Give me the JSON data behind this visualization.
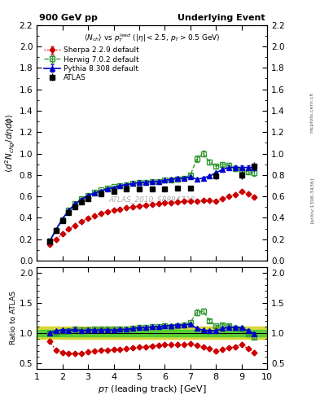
{
  "title_left": "900 GeV pp",
  "title_right": "Underlying Event",
  "ylabel_main": "$\\langle d^2 N_{chg}/d\\eta d\\phi \\rangle$",
  "ylabel_ratio": "Ratio to ATLAS",
  "xlabel": "$p_T$ (leading track) [GeV]",
  "subtitle": "$\\langle N_{ch}\\rangle$ vs $p_T^{lead}$ ($|\\eta| < 2.5$, $p_T > 0.5$ GeV)",
  "watermark": "ATLAS_2010_S8894728",
  "side_label_top": "mcplots.cern.ch",
  "side_label_bottom": "[arXiv:1306.3436]",
  "ylim_main": [
    0.0,
    2.2
  ],
  "ylim_ratio": [
    0.4,
    2.1
  ],
  "xlim": [
    1.0,
    10.0
  ],
  "xticks": [
    1,
    2,
    3,
    4,
    5,
    6,
    7,
    8,
    9,
    10
  ],
  "atlas_x": [
    1.5,
    1.75,
    2.0,
    2.25,
    2.5,
    2.75,
    3.0,
    3.5,
    4.0,
    4.5,
    5.0,
    5.5,
    6.0,
    6.5,
    7.0,
    8.0,
    9.0,
    9.5
  ],
  "atlas_y": [
    0.18,
    0.28,
    0.37,
    0.45,
    0.5,
    0.55,
    0.58,
    0.62,
    0.65,
    0.67,
    0.67,
    0.67,
    0.67,
    0.68,
    0.68,
    0.79,
    0.8,
    0.88
  ],
  "atlas_ey": [
    0.01,
    0.01,
    0.01,
    0.01,
    0.01,
    0.01,
    0.01,
    0.01,
    0.01,
    0.01,
    0.01,
    0.01,
    0.01,
    0.01,
    0.02,
    0.03,
    0.04,
    0.04
  ],
  "atlas_band_inner": 0.05,
  "atlas_band_outer": 0.1,
  "herwig_x": [
    1.5,
    1.75,
    2.0,
    2.25,
    2.5,
    2.75,
    3.0,
    3.25,
    3.5,
    3.75,
    4.0,
    4.25,
    4.5,
    4.75,
    5.0,
    5.25,
    5.5,
    5.75,
    6.0,
    6.25,
    6.5,
    6.75,
    7.0,
    7.25,
    7.5,
    7.75,
    8.0,
    8.25,
    8.5,
    8.75,
    9.0,
    9.25,
    9.5
  ],
  "herwig_y": [
    0.18,
    0.28,
    0.38,
    0.47,
    0.53,
    0.58,
    0.61,
    0.64,
    0.66,
    0.68,
    0.69,
    0.7,
    0.71,
    0.72,
    0.73,
    0.73,
    0.74,
    0.74,
    0.75,
    0.75,
    0.76,
    0.77,
    0.8,
    0.95,
    1.0,
    0.92,
    0.88,
    0.9,
    0.89,
    0.86,
    0.85,
    0.83,
    0.82
  ],
  "herwig_ey": [
    0.005,
    0.005,
    0.005,
    0.005,
    0.005,
    0.005,
    0.005,
    0.005,
    0.005,
    0.005,
    0.005,
    0.005,
    0.005,
    0.005,
    0.005,
    0.005,
    0.005,
    0.005,
    0.005,
    0.005,
    0.01,
    0.01,
    0.01,
    0.03,
    0.03,
    0.02,
    0.02,
    0.02,
    0.02,
    0.02,
    0.02,
    0.02,
    0.03
  ],
  "pythia_x": [
    1.5,
    1.75,
    2.0,
    2.25,
    2.5,
    2.75,
    3.0,
    3.25,
    3.5,
    3.75,
    4.0,
    4.25,
    4.5,
    4.75,
    5.0,
    5.25,
    5.5,
    5.75,
    6.0,
    6.25,
    6.5,
    6.75,
    7.0,
    7.25,
    7.5,
    7.75,
    8.0,
    8.25,
    8.5,
    8.75,
    9.0,
    9.25,
    9.5
  ],
  "pythia_y": [
    0.18,
    0.29,
    0.39,
    0.47,
    0.53,
    0.57,
    0.61,
    0.63,
    0.65,
    0.67,
    0.68,
    0.7,
    0.71,
    0.72,
    0.73,
    0.73,
    0.74,
    0.74,
    0.75,
    0.76,
    0.77,
    0.77,
    0.78,
    0.76,
    0.77,
    0.79,
    0.82,
    0.85,
    0.87,
    0.87,
    0.87,
    0.87,
    0.87
  ],
  "pythia_ey": [
    0.005,
    0.005,
    0.005,
    0.005,
    0.005,
    0.005,
    0.005,
    0.005,
    0.005,
    0.005,
    0.005,
    0.005,
    0.005,
    0.005,
    0.005,
    0.005,
    0.005,
    0.005,
    0.005,
    0.005,
    0.01,
    0.01,
    0.01,
    0.01,
    0.01,
    0.01,
    0.01,
    0.01,
    0.02,
    0.02,
    0.02,
    0.02,
    0.02
  ],
  "sherpa_x": [
    1.5,
    1.75,
    2.0,
    2.25,
    2.5,
    2.75,
    3.0,
    3.25,
    3.5,
    3.75,
    4.0,
    4.25,
    4.5,
    4.75,
    5.0,
    5.25,
    5.5,
    5.75,
    6.0,
    6.25,
    6.5,
    6.75,
    7.0,
    7.25,
    7.5,
    7.75,
    8.0,
    8.25,
    8.5,
    8.75,
    9.0,
    9.25,
    9.5
  ],
  "sherpa_y": [
    0.155,
    0.2,
    0.25,
    0.295,
    0.33,
    0.365,
    0.395,
    0.42,
    0.44,
    0.455,
    0.47,
    0.482,
    0.492,
    0.502,
    0.51,
    0.518,
    0.525,
    0.532,
    0.538,
    0.542,
    0.548,
    0.553,
    0.558,
    0.558,
    0.562,
    0.565,
    0.555,
    0.575,
    0.6,
    0.615,
    0.645,
    0.625,
    0.595
  ],
  "sherpa_ey": [
    0.004,
    0.004,
    0.004,
    0.004,
    0.004,
    0.004,
    0.004,
    0.004,
    0.004,
    0.004,
    0.004,
    0.004,
    0.004,
    0.004,
    0.004,
    0.004,
    0.004,
    0.004,
    0.004,
    0.004,
    0.004,
    0.004,
    0.004,
    0.004,
    0.006,
    0.006,
    0.008,
    0.008,
    0.008,
    0.008,
    0.01,
    0.01,
    0.01
  ],
  "color_atlas": "#000000",
  "color_herwig": "#339933",
  "color_pythia": "#0000cc",
  "color_sherpa": "#cc0000",
  "color_band_inner": "#33cc33",
  "color_band_outer": "#cccc00"
}
